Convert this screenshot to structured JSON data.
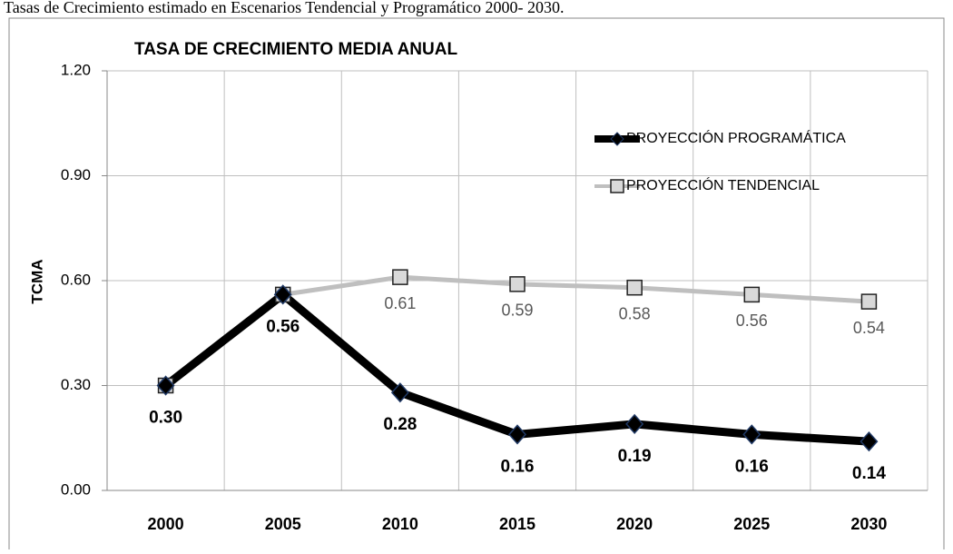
{
  "caption": "Tasas de Crecimiento estimado en Escenarios Tendencial y Programático 2000- 2030.",
  "chart_data": {
    "type": "line",
    "title": "TASA DE CRECIMIENTO  MEDIA ANUAL",
    "y_label": "TCMA",
    "categories": [
      "2000",
      "2005",
      "2010",
      "2015",
      "2020",
      "2025",
      "2030"
    ],
    "series": [
      {
        "name": "PROYECCIÓN PROGRAMÁTICA",
        "color": "#000000",
        "marker": "diamond",
        "values": [
          0.3,
          0.56,
          0.28,
          0.16,
          0.19,
          0.16,
          0.14
        ],
        "value_labels": [
          "0.30",
          "0.56",
          "0.28",
          "0.16",
          "0.19",
          "0.16",
          "0.14"
        ]
      },
      {
        "name": "PROYECCIÓN TENDENCIAL",
        "color": "#bfbfbf",
        "marker": "square",
        "values": [
          0.3,
          0.56,
          0.61,
          0.59,
          0.58,
          0.56,
          0.54
        ],
        "value_labels": [
          null,
          null,
          "0.61",
          "0.59",
          "0.58",
          "0.56",
          "0.54"
        ]
      }
    ],
    "ylim": [
      0,
      1.2
    ],
    "yticks": [
      {
        "value": 0,
        "label": "0.00"
      },
      {
        "value": 0.3,
        "label": "0.30"
      },
      {
        "value": 0.6,
        "label": "0.60"
      },
      {
        "value": 0.9,
        "label": "0.90"
      },
      {
        "value": 1.2,
        "label": "1.20"
      }
    ],
    "grid": true
  }
}
